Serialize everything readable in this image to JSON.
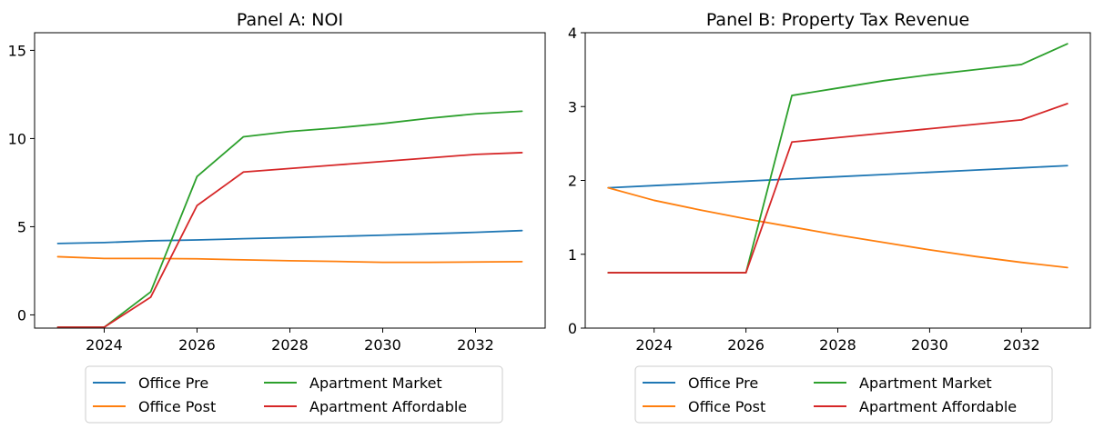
{
  "chart_data": [
    {
      "type": "line",
      "title": "Panel A: NOI",
      "xlabel": "",
      "ylabel": "",
      "x": [
        2023,
        2024,
        2025,
        2026,
        2027,
        2028,
        2029,
        2030,
        2031,
        2032,
        2033
      ],
      "xlim": [
        2022.5,
        2033.5
      ],
      "ylim": [
        -0.75,
        16.0
      ],
      "xticks": [
        2024,
        2026,
        2028,
        2030,
        2032
      ],
      "yticks": [
        0,
        5,
        10,
        15
      ],
      "grid": false,
      "legend": {
        "placement": "below",
        "columns": 2
      },
      "series": [
        {
          "name": "Office Pre",
          "color": "#1f77b4",
          "values": [
            4.05,
            4.1,
            4.2,
            4.25,
            4.32,
            4.38,
            4.45,
            4.52,
            4.6,
            4.68,
            4.78
          ]
        },
        {
          "name": "Office Post",
          "color": "#ff7f0e",
          "values": [
            3.3,
            3.2,
            3.2,
            3.18,
            3.12,
            3.07,
            3.03,
            2.98,
            2.98,
            3.0,
            3.02
          ]
        },
        {
          "name": "Apartment Market",
          "color": "#2ca02c",
          "values": [
            -0.7,
            -0.7,
            1.3,
            7.85,
            10.1,
            10.4,
            10.6,
            10.85,
            11.15,
            11.4,
            11.55
          ]
        },
        {
          "name": "Apartment Affordable",
          "color": "#d62728",
          "values": [
            -0.7,
            -0.7,
            1.0,
            6.2,
            8.1,
            8.3,
            8.5,
            8.7,
            8.9,
            9.1,
            9.2
          ]
        }
      ]
    },
    {
      "type": "line",
      "title": "Panel B: Property Tax Revenue",
      "xlabel": "",
      "ylabel": "",
      "x": [
        2023,
        2024,
        2025,
        2026,
        2027,
        2028,
        2029,
        2030,
        2031,
        2032,
        2033
      ],
      "xlim": [
        2022.5,
        2033.5
      ],
      "ylim": [
        0,
        4.0
      ],
      "xticks": [
        2024,
        2026,
        2028,
        2030,
        2032
      ],
      "yticks": [
        0,
        1,
        2,
        3,
        4
      ],
      "grid": false,
      "legend": {
        "placement": "below",
        "columns": 2
      },
      "series": [
        {
          "name": "Office Pre",
          "color": "#1f77b4",
          "values": [
            1.9,
            1.93,
            1.96,
            1.99,
            2.02,
            2.05,
            2.08,
            2.11,
            2.14,
            2.17,
            2.2
          ]
        },
        {
          "name": "Office Post",
          "color": "#ff7f0e",
          "values": [
            1.9,
            1.73,
            1.6,
            1.48,
            1.37,
            1.26,
            1.16,
            1.06,
            0.97,
            0.89,
            0.82
          ]
        },
        {
          "name": "Apartment Market",
          "color": "#2ca02c",
          "values": [
            0.75,
            0.75,
            0.75,
            0.75,
            3.15,
            3.25,
            3.35,
            3.43,
            3.5,
            3.57,
            3.85
          ]
        },
        {
          "name": "Apartment Affordable",
          "color": "#d62728",
          "values": [
            0.75,
            0.75,
            0.75,
            0.75,
            2.52,
            2.58,
            2.64,
            2.7,
            2.76,
            2.82,
            3.04
          ]
        }
      ]
    }
  ]
}
